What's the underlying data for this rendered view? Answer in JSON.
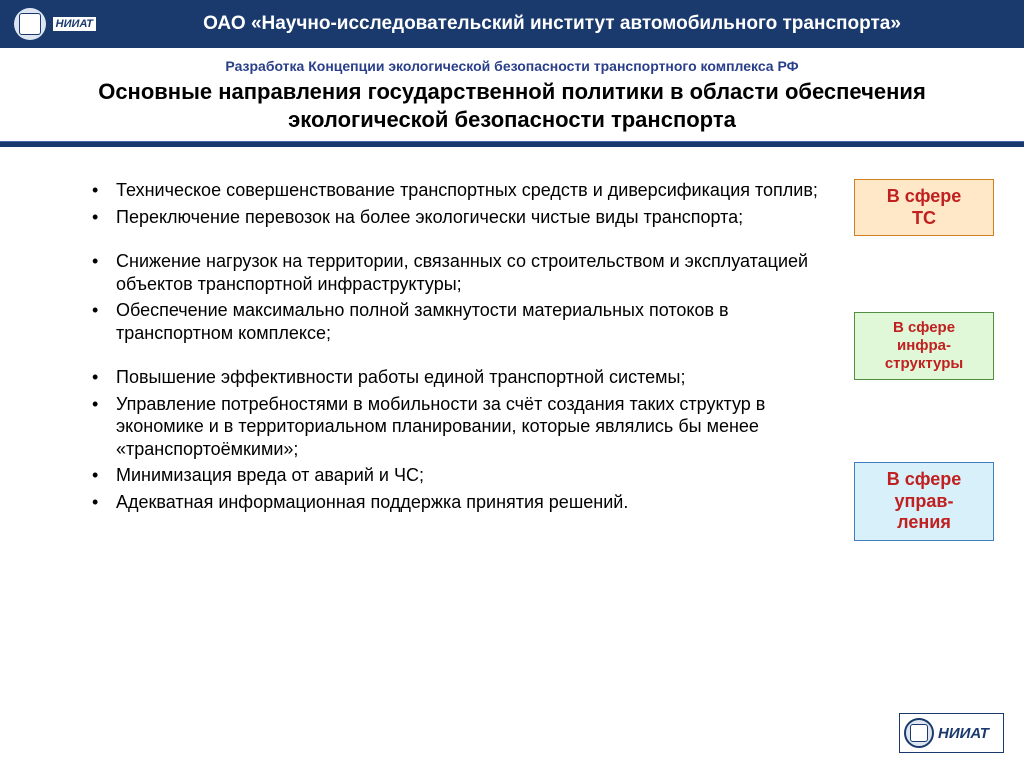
{
  "header": {
    "org_title": "ОАО «Научно-исследовательский институт автомобильного транспорта»",
    "logo_text": "НИИАТ"
  },
  "subheader": {
    "small": "Разработка Концепции экологической безопасности транспортного комплекса РФ",
    "large": "Основные направления государственной политики в области обеспечения экологической безопасности транспорта"
  },
  "colors": {
    "header_band": "#1a3a6e",
    "subheader_small": "#2a3f8a",
    "tag_text": "#c02020",
    "tag1_bg": "#ffe8c8",
    "tag1_border": "#d08020",
    "tag2_bg": "#e0f8d8",
    "tag2_border": "#509040",
    "tag3_bg": "#d8f0fa",
    "tag3_border": "#4080c0"
  },
  "groups": [
    {
      "tag_lines": [
        "В сфере",
        "ТС"
      ],
      "tag_fontsize": 18,
      "bullets": [
        "Техническое совершенствование транспортных средств и диверсификация топлив;",
        "Переключение перевозок на более экологически чистые виды транспорта;"
      ]
    },
    {
      "tag_lines": [
        "В сфере",
        "инфра-",
        "структуры"
      ],
      "tag_fontsize": 15,
      "bullets": [
        "Снижение нагрузок на территории, связанных со строительством и эксплуатацией объектов транспортной инфраструктуры;",
        "Обеспечение максимально полной замкнутости материальных потоков в транспортном комплексе;"
      ]
    },
    {
      "tag_lines": [
        "В сфере",
        "управ-",
        "ления"
      ],
      "tag_fontsize": 18,
      "bullets": [
        "Повышение эффективности работы единой транспортной системы;",
        "Управление потребностями в мобильности за счёт создания таких структур в экономике и в территориальном планировании, которые являлись бы менее «транспортоёмкими»;",
        "Минимизация вреда от аварий и ЧС;",
        "Адекватная информационная поддержка принятия решений."
      ]
    }
  ],
  "footer_logo": "НИИАТ"
}
